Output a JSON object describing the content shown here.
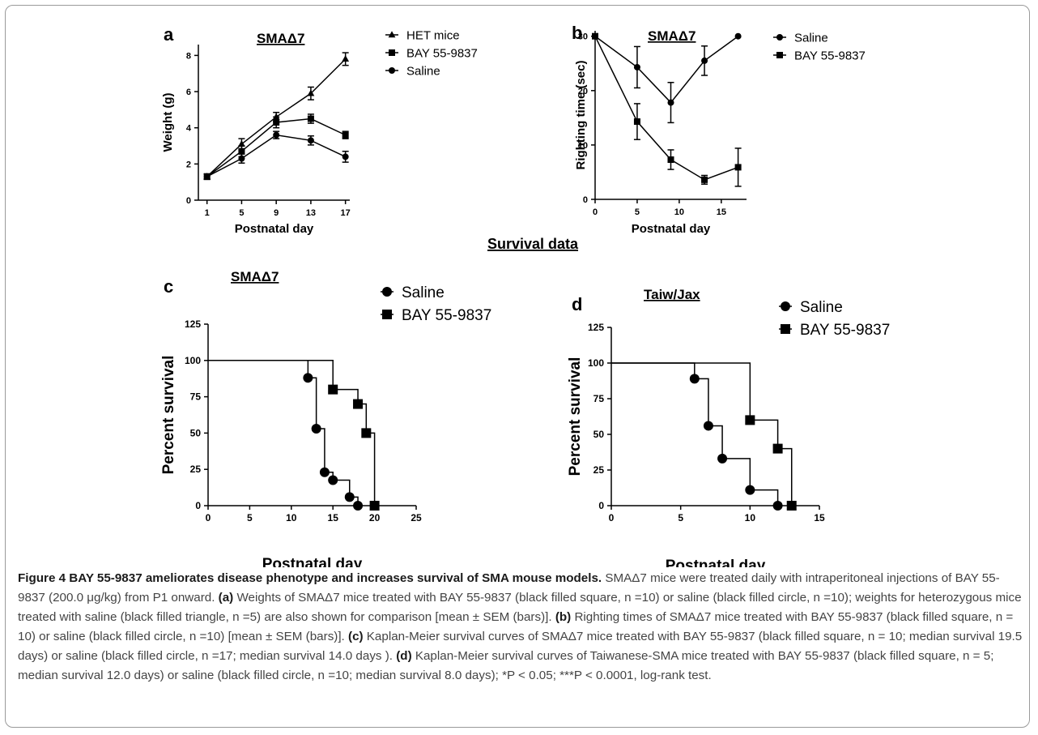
{
  "figure": {
    "section_title": "Survival data",
    "caption": {
      "label": "Figure 4 BAY 55-9837 ameliorates disease phenotype and increases survival of SMA mouse models.",
      "intro": " SMAΔ7 mice were treated daily with intraperitoneal injections of BAY 55-9837 (200.0 μg/kg) from P1 onward. ",
      "a_tag": "(a)",
      "a_text": " Weights of SMAΔ7 mice treated with BAY 55-9837 (black filled square, n =10) or saline (black filled circle, n =10); weights for heterozygous mice treated with saline (black filled triangle, n =5) are also shown for comparison [mean ± SEM (bars)]. ",
      "b_tag": "(b)",
      "b_text": " Righting times of SMAΔ7 mice treated with BAY 55-9837 (black filled square, n = 10) or saline (black filled circle, n =10) [mean ± SEM (bars)]. ",
      "c_tag": "(c)",
      "c_text": " Kaplan-Meier survival curves of SMAΔ7 mice treated with BAY 55-9837 (black filled square, n = 10; median survival 19.5 days) or saline (black filled circle, n =17; median survival 14.0 days ). ",
      "d_tag": "(d)",
      "d_text": " Kaplan-Meier survival curves of Taiwanese-SMA mice treated with BAY 55-9837 (black filled square, n = 5; median survival 12.0 days) or saline (black filled circle, n =10; median survival 8.0 days); *P < 0.05; ***P < 0.0001, log-rank test."
    }
  },
  "chart_data": [
    {
      "panel": "a",
      "type": "line",
      "title": "SMAΔ7",
      "xlabel": "Postnatal day",
      "ylabel": "Weight (g)",
      "x": [
        1,
        5,
        9,
        13,
        17
      ],
      "xticks": [
        1,
        5,
        9,
        13,
        17
      ],
      "yticks": [
        0,
        2,
        4,
        6,
        8
      ],
      "xlim": [
        0,
        17.5
      ],
      "ylim": [
        0,
        8.6
      ],
      "error_bars": true,
      "legend_position": "right",
      "series": [
        {
          "name": "HET mice",
          "marker": "triangle",
          "values": [
            1.3,
            3.1,
            4.6,
            5.9,
            7.8
          ],
          "errors": [
            0.15,
            0.3,
            0.25,
            0.35,
            0.35
          ]
        },
        {
          "name": "BAY 55-9837",
          "marker": "square",
          "values": [
            1.3,
            2.7,
            4.3,
            4.5,
            3.6
          ],
          "errors": [
            0.15,
            0.3,
            0.3,
            0.25,
            0.2
          ]
        },
        {
          "name": "Saline",
          "marker": "circle",
          "values": [
            1.3,
            2.3,
            3.6,
            3.3,
            2.4
          ],
          "errors": [
            0.15,
            0.25,
            0.2,
            0.25,
            0.3
          ]
        }
      ]
    },
    {
      "panel": "b",
      "type": "line",
      "title": "SMAΔ7",
      "xlabel": "Postnatal day",
      "ylabel": "Righting time (sec)",
      "x": [
        0,
        5,
        9,
        13,
        17
      ],
      "xticks": [
        0,
        5,
        10,
        15
      ],
      "yticks": [
        0,
        10,
        20,
        30
      ],
      "xlim": [
        0,
        18
      ],
      "ylim": [
        0,
        31
      ],
      "error_bars": true,
      "legend_position": "right",
      "series": [
        {
          "name": "Saline",
          "marker": "circle",
          "values": [
            30,
            24.3,
            17.8,
            25.5,
            30
          ],
          "errors": [
            0,
            3.8,
            3.7,
            2.7,
            0
          ]
        },
        {
          "name": "BAY 55-9837",
          "marker": "square",
          "values": [
            30,
            14.3,
            7.3,
            3.6,
            5.9
          ],
          "errors": [
            0,
            3.3,
            1.8,
            0.8,
            3.5
          ]
        }
      ]
    },
    {
      "panel": "c",
      "type": "line",
      "step": true,
      "title": "SMAΔ7",
      "xlabel": "Postnatal day",
      "ylabel": "Percent survival",
      "xticks": [
        0,
        5,
        10,
        15,
        20,
        25
      ],
      "yticks": [
        0,
        25,
        50,
        75,
        100,
        125
      ],
      "xlim": [
        0,
        25
      ],
      "ylim": [
        0,
        125
      ],
      "legend_position": "top-right",
      "series": [
        {
          "name": "Saline",
          "marker": "circle",
          "x": [
            0,
            12,
            13,
            14,
            15,
            17,
            18
          ],
          "values": [
            100,
            88,
            53,
            23,
            17.6,
            5.9,
            0
          ]
        },
        {
          "name": "BAY 55-9837",
          "marker": "square",
          "x": [
            0,
            15,
            18,
            19,
            20
          ],
          "values": [
            100,
            80,
            70,
            50,
            0
          ]
        }
      ]
    },
    {
      "panel": "d",
      "type": "line",
      "step": true,
      "title": "Taiw/Jax",
      "xlabel": "Postnatal day",
      "ylabel": "Percent survival",
      "xticks": [
        0,
        5,
        10,
        15
      ],
      "yticks": [
        0,
        25,
        50,
        75,
        100,
        125
      ],
      "xlim": [
        0,
        15
      ],
      "ylim": [
        0,
        125
      ],
      "legend_position": "top-right",
      "series": [
        {
          "name": "Saline",
          "marker": "circle",
          "x": [
            0,
            6,
            7,
            8,
            10,
            12
          ],
          "values": [
            100,
            89,
            56,
            33,
            11,
            0
          ]
        },
        {
          "name": "BAY 55-9837",
          "marker": "square",
          "x": [
            0,
            10,
            12,
            13
          ],
          "values": [
            100,
            60,
            40,
            0
          ]
        }
      ]
    }
  ]
}
